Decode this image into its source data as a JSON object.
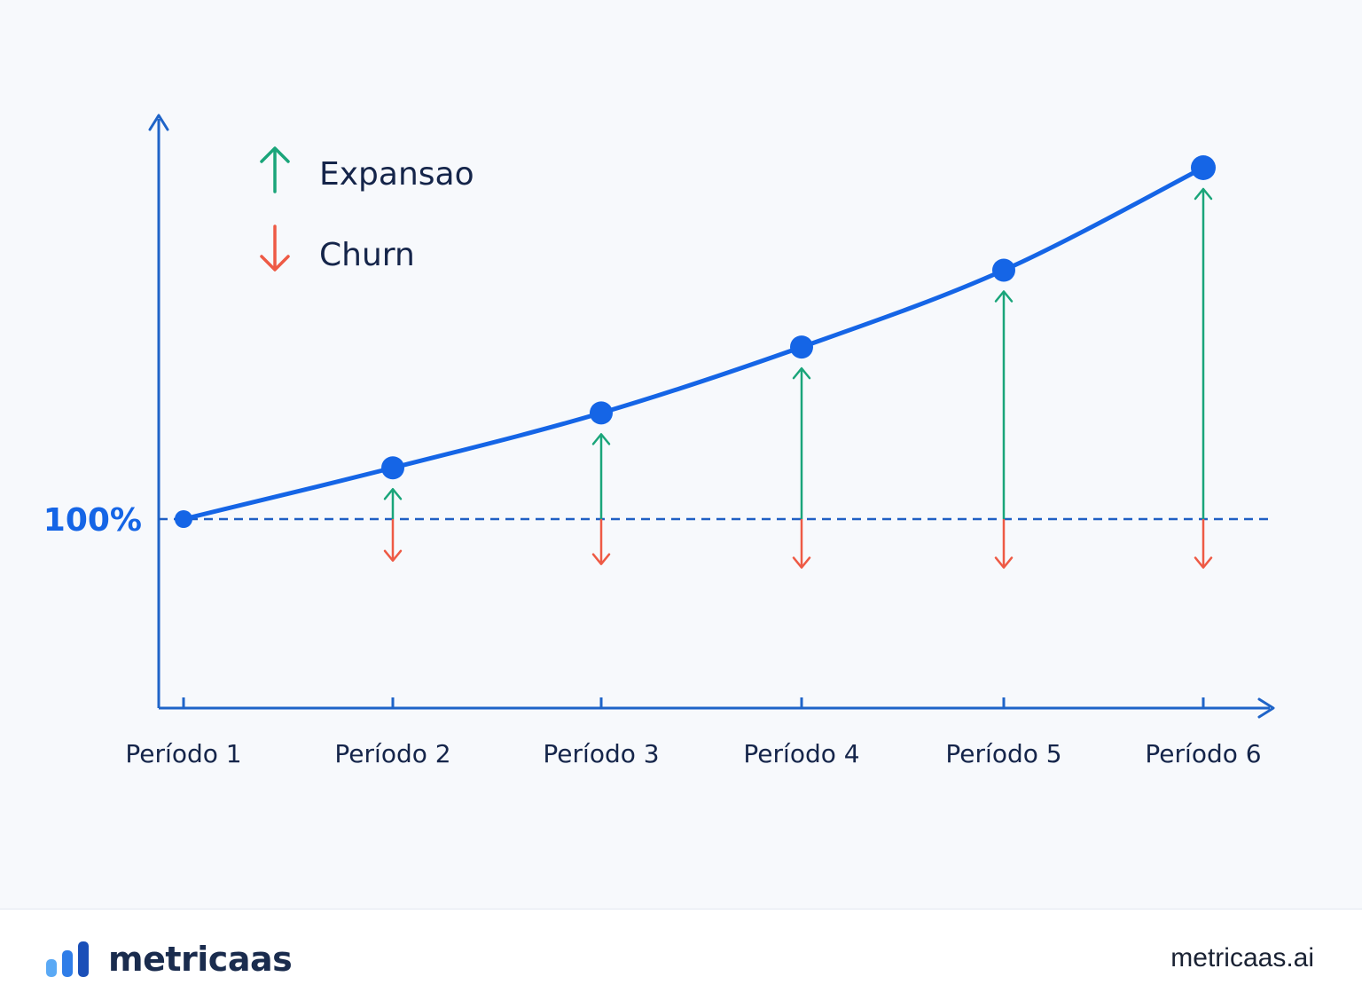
{
  "chart_data": {
    "type": "line",
    "categories": [
      "Período 1",
      "Período 2",
      "Período 3",
      "Período 4",
      "Período 5",
      "Período 6"
    ],
    "values": [
      100,
      114,
      129,
      147,
      168,
      196
    ],
    "expansion": [
      0,
      9,
      23,
      42,
      63,
      91
    ],
    "churn": [
      0,
      12,
      13,
      14,
      14,
      14
    ],
    "reference_line": {
      "value": 100,
      "label": "100%"
    },
    "legend": {
      "position": "top-left",
      "items": [
        {
          "label": "Expansao",
          "icon": "arrow-up-icon",
          "color": "#1aa57a"
        },
        {
          "label": "Churn",
          "icon": "arrow-down-icon",
          "color": "#ee5a45"
        }
      ]
    },
    "ylim": [
      50,
      200
    ],
    "grid": false,
    "colors": {
      "line": "#1565e6",
      "axis": "#1f64c8",
      "reference": "#1f5fc4",
      "expansion": "#1aa57a",
      "churn": "#ee5a45",
      "tick_label": "#15254a",
      "reference_label": "#1565e6"
    }
  },
  "footer": {
    "brand_name": "metricaas",
    "brand_icon": "bar-chart-logo-icon",
    "site_url": "metricaas.ai"
  }
}
